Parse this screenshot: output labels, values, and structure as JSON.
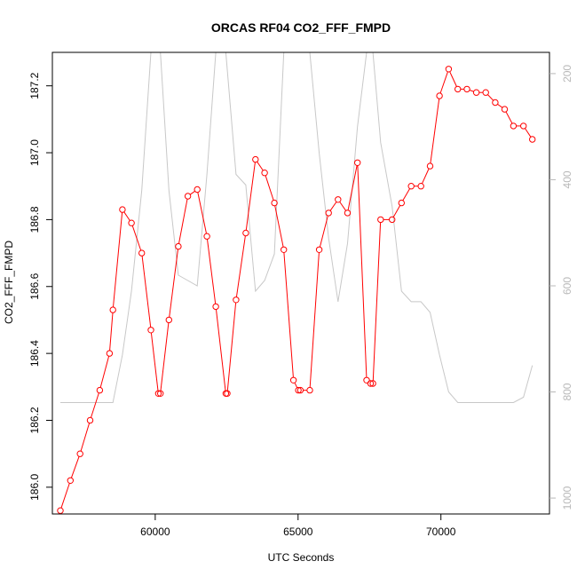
{
  "chart_data": {
    "type": "line",
    "title": "ORCAS RF04 CO2_FFF_FMPD",
    "xlabel": "UTC Seconds",
    "ylabel": "CO2_FFF_FMPD",
    "xlim": [
      56400,
      73800
    ],
    "ylim": [
      185.92,
      187.3
    ],
    "y2lim": [
      1030,
      160
    ],
    "x_ticks": [
      60000,
      65000,
      70000
    ],
    "x_tick_labels": [
      "60000",
      "65000",
      "70000"
    ],
    "y_ticks": [
      186.0,
      186.2,
      186.4,
      186.6,
      186.8,
      187.0,
      187.2
    ],
    "y_tick_labels": [
      "186.0",
      "186.2",
      "186.4",
      "186.6",
      "186.8",
      "187.0",
      "187.2"
    ],
    "y2_ticks": [
      200,
      400,
      600,
      800,
      1000
    ],
    "y2_tick_labels": [
      "200",
      "400",
      "600",
      "800",
      "1000"
    ],
    "grid": false,
    "legend": "none",
    "series": [
      {
        "role": "primary",
        "color": "#ff0000",
        "marker": "open-circle",
        "points": [
          [
            56680,
            185.93
          ],
          [
            57030,
            186.02
          ],
          [
            57370,
            186.1
          ],
          [
            57720,
            186.2
          ],
          [
            58060,
            186.29
          ],
          [
            58400,
            186.4
          ],
          [
            58520,
            186.53
          ],
          [
            58850,
            186.83
          ],
          [
            59170,
            186.79
          ],
          [
            59530,
            186.7
          ],
          [
            59850,
            186.47
          ],
          [
            60110,
            186.28
          ],
          [
            60180,
            186.28
          ],
          [
            60480,
            186.5
          ],
          [
            60810,
            186.72
          ],
          [
            61140,
            186.87
          ],
          [
            61470,
            186.89
          ],
          [
            61810,
            186.75
          ],
          [
            62120,
            186.54
          ],
          [
            62470,
            186.28
          ],
          [
            62520,
            186.28
          ],
          [
            62830,
            186.56
          ],
          [
            63170,
            186.76
          ],
          [
            63510,
            186.98
          ],
          [
            63830,
            186.94
          ],
          [
            64170,
            186.85
          ],
          [
            64500,
            186.71
          ],
          [
            64840,
            186.32
          ],
          [
            65010,
            186.29
          ],
          [
            65080,
            186.29
          ],
          [
            65410,
            186.29
          ],
          [
            65740,
            186.71
          ],
          [
            66070,
            186.82
          ],
          [
            66400,
            186.86
          ],
          [
            66730,
            186.82
          ],
          [
            67080,
            186.97
          ],
          [
            67400,
            186.32
          ],
          [
            67540,
            186.31
          ],
          [
            67620,
            186.31
          ],
          [
            67890,
            186.8
          ],
          [
            68290,
            186.8
          ],
          [
            68620,
            186.85
          ],
          [
            68960,
            186.9
          ],
          [
            69300,
            186.9
          ],
          [
            69620,
            186.96
          ],
          [
            69950,
            187.17
          ],
          [
            70270,
            187.25
          ],
          [
            70590,
            187.19
          ],
          [
            70910,
            187.19
          ],
          [
            71240,
            187.18
          ],
          [
            71570,
            187.18
          ],
          [
            71900,
            187.15
          ],
          [
            72230,
            187.13
          ],
          [
            72540,
            187.08
          ],
          [
            72890,
            187.08
          ],
          [
            73200,
            187.04
          ]
        ]
      },
      {
        "role": "secondary-axis",
        "color": "#c8c8c8",
        "points": [
          [
            56680,
            820
          ],
          [
            58520,
            820
          ],
          [
            58850,
            730
          ],
          [
            59170,
            610
          ],
          [
            59530,
            420
          ],
          [
            59850,
            160
          ],
          [
            60180,
            160
          ],
          [
            60480,
            420
          ],
          [
            60810,
            580
          ],
          [
            61140,
            590
          ],
          [
            61470,
            600
          ],
          [
            61810,
            390
          ],
          [
            62120,
            160
          ],
          [
            62470,
            160
          ],
          [
            62830,
            390
          ],
          [
            63170,
            410
          ],
          [
            63510,
            610
          ],
          [
            63830,
            590
          ],
          [
            64170,
            540
          ],
          [
            64500,
            160
          ],
          [
            64840,
            160
          ],
          [
            65410,
            160
          ],
          [
            65740,
            350
          ],
          [
            66070,
            510
          ],
          [
            66400,
            630
          ],
          [
            66730,
            520
          ],
          [
            67080,
            300
          ],
          [
            67400,
            160
          ],
          [
            67620,
            160
          ],
          [
            67890,
            330
          ],
          [
            68290,
            450
          ],
          [
            68620,
            610
          ],
          [
            68960,
            630
          ],
          [
            69300,
            630
          ],
          [
            69620,
            650
          ],
          [
            69950,
            730
          ],
          [
            70270,
            800
          ],
          [
            70590,
            820
          ],
          [
            72540,
            820
          ],
          [
            72890,
            810
          ],
          [
            73200,
            750
          ]
        ]
      }
    ]
  }
}
